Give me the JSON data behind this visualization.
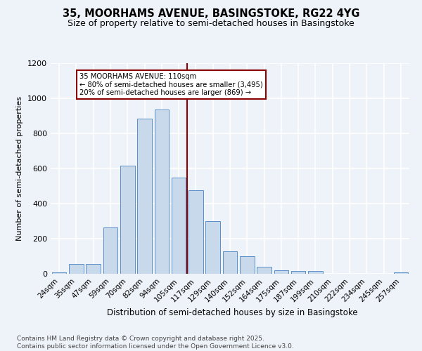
{
  "title1": "35, MOORHAMS AVENUE, BASINGSTOKE, RG22 4YG",
  "title2": "Size of property relative to semi-detached houses in Basingstoke",
  "xlabel": "Distribution of semi-detached houses by size in Basingstoke",
  "ylabel": "Number of semi-detached properties",
  "footnote": "Contains HM Land Registry data © Crown copyright and database right 2025.\nContains public sector information licensed under the Open Government Licence v3.0.",
  "bar_labels": [
    "24sqm",
    "35sqm",
    "47sqm",
    "59sqm",
    "70sqm",
    "82sqm",
    "94sqm",
    "105sqm",
    "117sqm",
    "129sqm",
    "140sqm",
    "152sqm",
    "164sqm",
    "175sqm",
    "187sqm",
    "199sqm",
    "210sqm",
    "222sqm",
    "234sqm",
    "245sqm",
    "257sqm"
  ],
  "bar_values": [
    10,
    55,
    55,
    265,
    615,
    885,
    935,
    550,
    475,
    300,
    130,
    100,
    40,
    22,
    15,
    15,
    0,
    0,
    0,
    0,
    10
  ],
  "bar_color": "#c8d9ec",
  "bar_edge_color": "#5b8fc9",
  "vline_color": "#8b0000",
  "annotation_title": "35 MOORHAMS AVENUE: 110sqm",
  "annotation_line1": "← 80% of semi-detached houses are smaller (3,495)",
  "annotation_line2": "20% of semi-detached houses are larger (869) →",
  "annotation_box_color": "#8b0000",
  "ylim": [
    0,
    1200
  ],
  "yticks": [
    0,
    200,
    400,
    600,
    800,
    1000,
    1200
  ],
  "background_color": "#eef2f9",
  "grid_color": "#ffffff",
  "title1_fontsize": 10.5,
  "title2_fontsize": 9,
  "footnote_fontsize": 6.5
}
